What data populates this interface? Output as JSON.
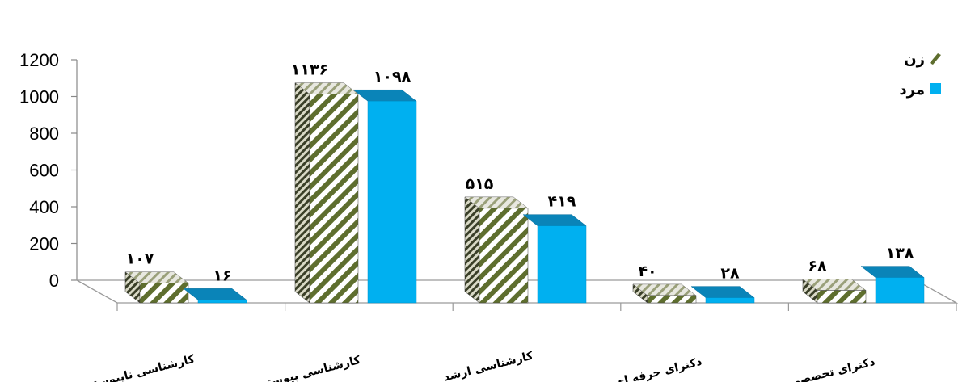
{
  "chart_data": {
    "type": "bar",
    "categories": [
      "کارشناسی ناپیوسته",
      "کارشناسی پیوسته",
      "کارشناسی ارشد",
      "دکترای حرفه ای",
      "دکترای تخصصی"
    ],
    "series": [
      {
        "name": "زن",
        "values": [
          107,
          1136,
          515,
          40,
          68
        ],
        "labels": [
          "۱۰۷",
          "۱۱۳۶",
          "۵۱۵",
          "۴۰",
          "۶۸"
        ],
        "color": "#6b7a3a",
        "pattern": "diagonal-stripes"
      },
      {
        "name": "مرد",
        "values": [
          16,
          1098,
          419,
          28,
          138
        ],
        "labels": [
          "۱۶",
          "۱۰۹۸",
          "۴۱۹",
          "۲۸",
          "۱۳۸"
        ],
        "color": "#00b0f0"
      }
    ],
    "yticks": [
      "0",
      "200",
      "400",
      "600",
      "800",
      "1000",
      "1200"
    ],
    "ylim": [
      0,
      1200
    ],
    "legend_position": "right",
    "style": "3d-clustered-column"
  }
}
